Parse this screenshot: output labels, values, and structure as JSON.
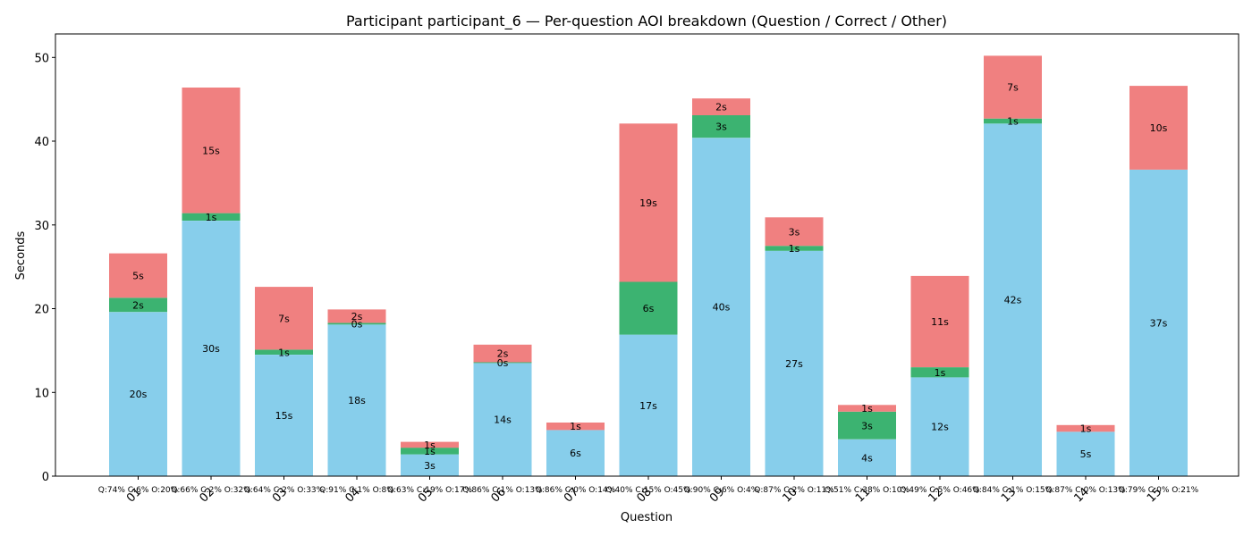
{
  "chart_data": {
    "type": "bar",
    "stacked": true,
    "title": "Participant participant_6 — Per-question AOI breakdown (Question / Correct / Other)",
    "xlabel": "Question",
    "ylabel": "Seconds",
    "ylim": [
      0,
      52.8
    ],
    "yticks": [
      0,
      10,
      20,
      30,
      40,
      50
    ],
    "grid": false,
    "legend": "none",
    "categories": [
      "01",
      "02",
      "03",
      "04",
      "05",
      "06",
      "07",
      "08",
      "09",
      "10",
      "11",
      "12",
      "13",
      "14",
      "15"
    ],
    "series": [
      {
        "color": "#87ceeb",
        "values": [
          19.6,
          30.5,
          14.5,
          18.1,
          2.6,
          13.5,
          5.5,
          16.9,
          40.4,
          26.9,
          4.4,
          11.8,
          42.1,
          5.3,
          36.6
        ],
        "labels": [
          "20s",
          "30s",
          "15s",
          "18s",
          "3s",
          "14s",
          "6s",
          "17s",
          "40s",
          "27s",
          "4s",
          "12s",
          "42s",
          "5s",
          "37s"
        ]
      },
      {
        "color": "#3cb371",
        "values": [
          1.7,
          0.9,
          0.6,
          0.2,
          0.8,
          0.1,
          0,
          6.3,
          2.7,
          0.6,
          3.3,
          1.2,
          0.6,
          0,
          0
        ],
        "labels": [
          "2s",
          "1s",
          "1s",
          "0s",
          "1s",
          "0s",
          "",
          "6s",
          "3s",
          "1s",
          "3s",
          "1s",
          "1s",
          "",
          ""
        ]
      },
      {
        "color": "#f08080",
        "values": [
          5.3,
          15.0,
          7.5,
          1.6,
          0.7,
          2.1,
          0.9,
          18.9,
          2.0,
          3.4,
          0.8,
          10.9,
          7.5,
          0.8,
          10.0
        ],
        "labels": [
          "5s",
          "15s",
          "7s",
          "2s",
          "1s",
          "2s",
          "1s",
          "19s",
          "2s",
          "3s",
          "1s",
          "11s",
          "7s",
          "1s",
          "10s"
        ]
      }
    ],
    "shares": [
      "Q:74% C:6% O:20%",
      "Q:66% C:2% O:32%",
      "Q:64% C:2% O:33%",
      "Q:91% C:1% O:8%",
      "Q:63% C:19% O:17%",
      "Q:86% C:1% O:13%",
      "Q:86% C:0% O:14%",
      "Q:40% C:15% O:45%",
      "Q:90% C:6% O:4%",
      "Q:87% C:2% O:11%",
      "Q:51% C:38% O:10%",
      "Q:49% C:5% O:46%",
      "Q:84% C:1% O:15%",
      "Q:87% C:0% O:13%",
      "Q:79% C:0% O:21%"
    ]
  }
}
